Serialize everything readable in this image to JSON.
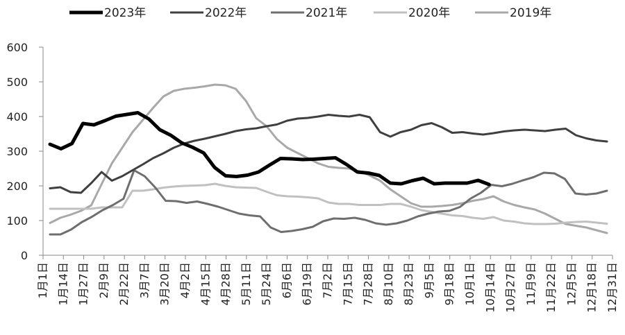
{
  "chart_data": {
    "type": "line",
    "title": "",
    "xlabel": "",
    "ylabel": "",
    "ylim": [
      0,
      600
    ],
    "y_ticks": [
      0,
      100,
      200,
      300,
      400,
      500,
      600
    ],
    "grid": false,
    "legend_position": "top",
    "x_tick_labels": [
      "1月1日",
      "1月14日",
      "1月27日",
      "2月9日",
      "2月22日",
      "3月7日",
      "3月20日",
      "4月2日",
      "4月15日",
      "4月28日",
      "5月11日",
      "5月24日",
      "6月6日",
      "6月19日",
      "7月2日",
      "7月15日",
      "7月28日",
      "8月10日",
      "8月23日",
      "9月5日",
      "9月18日",
      "10月1日",
      "10月14日",
      "10月27日",
      "11月9日",
      "11月22日",
      "12月5日",
      "12月18日",
      "12月31日"
    ],
    "series": [
      {
        "name": "2023年",
        "color": "#000000",
        "values": [
          320,
          307,
          322,
          380,
          376,
          388,
          401,
          406,
          411,
          393,
          362,
          346,
          324,
          311,
          295,
          253,
          229,
          227,
          231,
          240,
          260,
          279,
          278,
          276,
          277,
          279,
          281,
          262,
          240,
          237,
          230,
          208,
          206,
          215,
          222,
          206,
          208,
          208,
          208,
          216,
          204
        ]
      },
      {
        "name": "2022年",
        "color": "#3f3f3f",
        "values": [
          193,
          196,
          182,
          180,
          208,
          240,
          215,
          228,
          245,
          262,
          280,
          294,
          310,
          322,
          330,
          336,
          343,
          350,
          358,
          363,
          366,
          372,
          377,
          388,
          394,
          396,
          400,
          405,
          402,
          400,
          405,
          398,
          355,
          342,
          355,
          362,
          375,
          381,
          369,
          353,
          355,
          351,
          348,
          352,
          357,
          360,
          362,
          360,
          358,
          362,
          365,
          346,
          337,
          331,
          328
        ]
      },
      {
        "name": "2021年",
        "color": "#6e6e6e",
        "values": [
          60,
          60,
          74,
          95,
          111,
          130,
          145,
          163,
          245,
          228,
          196,
          157,
          156,
          151,
          155,
          148,
          140,
          130,
          120,
          115,
          112,
          80,
          67,
          70,
          75,
          82,
          98,
          106,
          105,
          108,
          102,
          92,
          88,
          92,
          100,
          112,
          120,
          126,
          128,
          139,
          163,
          180,
          203,
          199,
          206,
          216,
          225,
          238,
          236,
          220,
          178,
          175,
          178,
          186
        ]
      },
      {
        "name": "2020年",
        "color": "#c0c0c0",
        "values": [
          134,
          134,
          134,
          134,
          134,
          138,
          138,
          138,
          186,
          186,
          190,
          195,
          198,
          200,
          201,
          202,
          206,
          200,
          196,
          195,
          194,
          183,
          173,
          170,
          169,
          167,
          164,
          152,
          148,
          148,
          145,
          145,
          145,
          148,
          148,
          140,
          130,
          125,
          120,
          115,
          113,
          108,
          105,
          110,
          100,
          97,
          92,
          90,
          90,
          91,
          94,
          96,
          97,
          94,
          91
        ]
      },
      {
        "name": "2019年",
        "color": "#a8a8a8",
        "values": [
          93,
          108,
          117,
          128,
          144,
          205,
          265,
          310,
          355,
          390,
          425,
          458,
          474,
          480,
          483,
          487,
          492,
          490,
          480,
          445,
          395,
          372,
          335,
          310,
          295,
          280,
          265,
          255,
          252,
          250,
          242,
          230,
          215,
          190,
          170,
          150,
          140,
          140,
          142,
          145,
          150,
          157,
          162,
          170,
          155,
          145,
          138,
          132,
          120,
          105,
          90,
          85,
          80,
          72,
          64
        ]
      }
    ]
  }
}
